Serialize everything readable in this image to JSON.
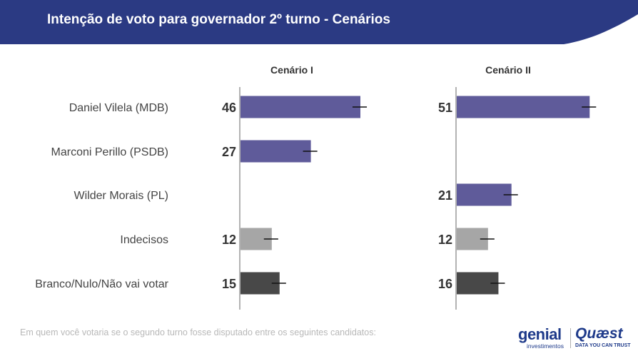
{
  "header": {
    "title": "Intenção de voto para governador 2º turno - Cenários"
  },
  "footer": {
    "note": "Em quem você votaria se o segundo turno fosse disputado entre os seguintes candidatos:"
  },
  "logos": {
    "genial": {
      "word": "genial",
      "sub": "investimentos"
    },
    "quaest": {
      "word": "Quæst",
      "sub": "DATA YOU CAN TRUST"
    }
  },
  "colors": {
    "header": "#2b3a83",
    "candidate": "#5f5b9a",
    "undecided": "#a6a6a6",
    "blank": "#484848",
    "axis": "#b3b3b3",
    "text": "#444444",
    "value": "#333333",
    "error": "#111111"
  },
  "chart_data": {
    "type": "bar",
    "orientation": "horizontal",
    "categories": [
      "Daniel Vilela (MDB)",
      "Marconi Perillo (PSDB)",
      "Wilder Morais (PL)",
      "Indecisos",
      "Branco/Nulo/Não vai votar"
    ],
    "category_kinds": [
      "candidate",
      "candidate",
      "candidate",
      "undecided",
      "blank"
    ],
    "margin_of_error": 5,
    "series": [
      {
        "name": "Cenário I",
        "values": [
          46,
          27,
          null,
          12,
          15
        ]
      },
      {
        "name": "Cenário II",
        "values": [
          51,
          null,
          21,
          12,
          16
        ]
      }
    ],
    "xlim": [
      0,
      60
    ],
    "grid": false,
    "legend": "none"
  }
}
